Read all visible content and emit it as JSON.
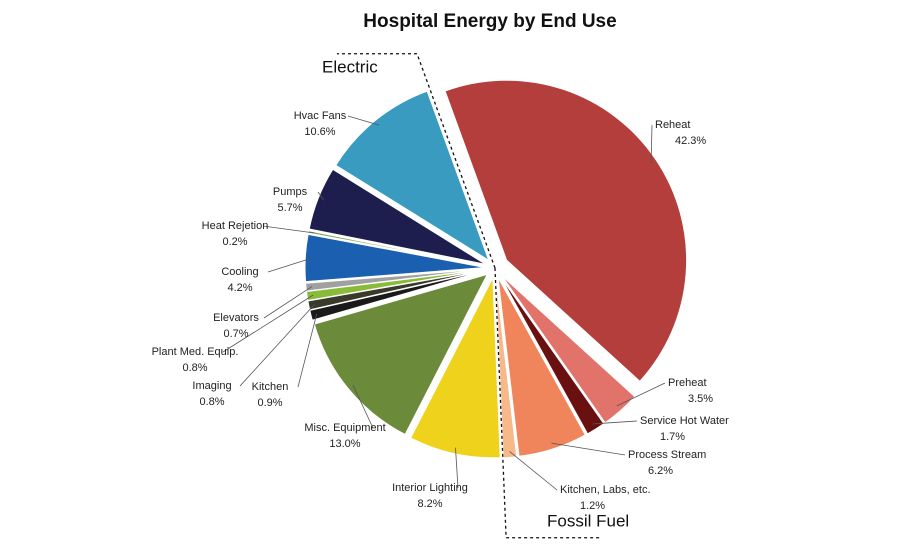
{
  "chart_data": {
    "type": "pie",
    "title": "Hospital Energy by End Use",
    "categories": [
      "Reheat",
      "Preheat",
      "Service Hot Water",
      "Process Stream",
      "Kitchen, Labs, etc.",
      "Interior Lighting",
      "Misc. Equipment",
      "Kitchen",
      "Imaging",
      "Plant Med. Equip.",
      "Elevators",
      "Cooling",
      "Heat Rejetion",
      "Pumps",
      "Hvac Fans"
    ],
    "values": [
      42.3,
      3.5,
      1.7,
      6.2,
      1.2,
      8.2,
      13.0,
      0.9,
      0.8,
      0.8,
      0.7,
      4.2,
      0.2,
      5.7,
      10.6
    ],
    "value_labels": [
      "42.3%",
      "3.5%",
      "1.7%",
      "6.2%",
      "1.2%",
      "8.2%",
      "13.0%",
      "0.9%",
      "0.8%",
      "0.8%",
      "0.7%",
      "4.2%",
      "0.2%",
      "5.7%",
      "10.6%"
    ],
    "colors": [
      "#b33e3c",
      "#e2736b",
      "#6b1010",
      "#f0845a",
      "#f8b98a",
      "#eed21c",
      "#6b8a3a",
      "#1a1a1a",
      "#3a3a2a",
      "#8aba3a",
      "#a0a0a0",
      "#1a5fb0",
      "#7aa33a",
      "#1d1d4e",
      "#3a9bc0"
    ],
    "annotations": [
      "Electric",
      "Fossil Fuel"
    ]
  }
}
